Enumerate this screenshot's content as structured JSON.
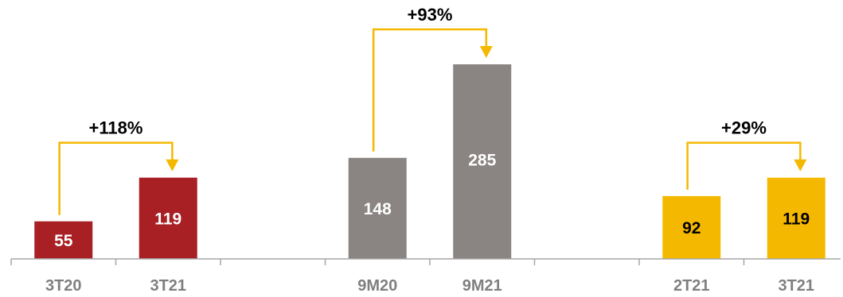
{
  "chart_data": {
    "type": "bar",
    "categories": [
      "3T20",
      "3T21",
      "9M20",
      "9M21",
      "2T21",
      "3T21"
    ],
    "values": [
      55,
      119,
      148,
      285,
      92,
      119
    ],
    "bar_colors": [
      "#a81f24",
      "#a81f24",
      "#8a8483",
      "#8a8483",
      "#f5b800",
      "#f5b800"
    ],
    "label_colors": [
      "#ffffff",
      "#ffffff",
      "#ffffff",
      "#ffffff",
      "#000000",
      "#000000"
    ],
    "comparisons": [
      {
        "from": 0,
        "to": 1,
        "label": "+118%"
      },
      {
        "from": 2,
        "to": 3,
        "label": "+93%"
      },
      {
        "from": 4,
        "to": 5,
        "label": "+29%"
      }
    ],
    "arrow_color": "#f5b800",
    "axis_color": "#a6a6a6",
    "tick_label_color": "#7f7f7f",
    "ylim": [
      0,
      300
    ],
    "grid": false,
    "title": "",
    "xlabel": "",
    "ylabel": ""
  }
}
